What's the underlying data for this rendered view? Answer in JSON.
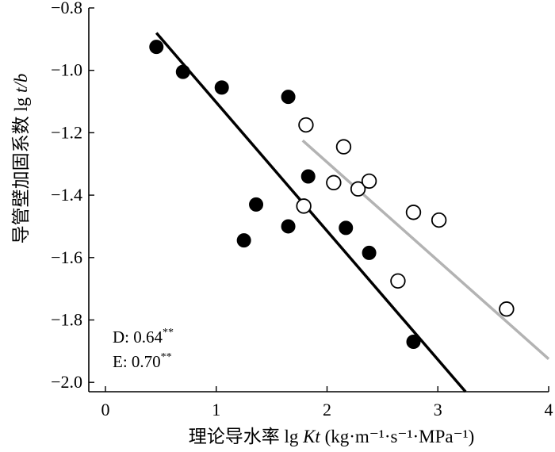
{
  "chart_data": {
    "type": "scatter",
    "xlabel_parts": {
      "prefix": "理论导水率 lg ",
      "var": "Kt",
      "unit": " (kg·m⁻¹·s⁻¹·MPa⁻¹)"
    },
    "ylabel_parts": {
      "prefix": "导管壁加固系数 lg ",
      "var": "t/b"
    },
    "xlim": [
      -0.15,
      4.0
    ],
    "ylim": [
      -2.03,
      -0.8
    ],
    "xticks": [
      0,
      1,
      2,
      3,
      4
    ],
    "yticks": [
      -0.8,
      -1.0,
      -1.2,
      -1.4,
      -1.6,
      -1.8,
      -2.0
    ],
    "xtick_labels": [
      "0",
      "1",
      "2",
      "3",
      "4"
    ],
    "ytick_labels": [
      "−0.8",
      "−1.0",
      "−1.2",
      "−1.4",
      "−1.6",
      "−1.8",
      "−2.0"
    ],
    "grid": false,
    "series": [
      {
        "name": "D",
        "marker": "filled-circle",
        "color": "#000000",
        "points": [
          [
            0.46,
            -0.925
          ],
          [
            0.7,
            -1.005
          ],
          [
            1.05,
            -1.055
          ],
          [
            1.65,
            -1.085
          ],
          [
            1.36,
            -1.43
          ],
          [
            1.83,
            -1.34
          ],
          [
            1.25,
            -1.545
          ],
          [
            1.65,
            -1.5
          ],
          [
            2.17,
            -1.505
          ],
          [
            2.38,
            -1.585
          ],
          [
            2.78,
            -1.87
          ]
        ],
        "fit": {
          "x": [
            0.46,
            3.25
          ],
          "y": [
            -0.88,
            -2.03
          ],
          "color": "#000000"
        }
      },
      {
        "name": "E",
        "marker": "open-circle",
        "color": "#000000",
        "points": [
          [
            1.81,
            -1.175
          ],
          [
            2.15,
            -1.245
          ],
          [
            2.06,
            -1.36
          ],
          [
            2.28,
            -1.38
          ],
          [
            2.38,
            -1.355
          ],
          [
            1.79,
            -1.435
          ],
          [
            2.78,
            -1.455
          ],
          [
            3.01,
            -1.48
          ],
          [
            2.64,
            -1.675
          ],
          [
            3.62,
            -1.765
          ]
        ],
        "fit": {
          "x": [
            1.78,
            4.0
          ],
          "y": [
            -1.225,
            -1.925
          ],
          "color": "#b3b3b3"
        }
      }
    ],
    "annotations": [
      {
        "label": "D: 0.64",
        "sup": "**"
      },
      {
        "label": "E: 0.70",
        "sup": "**"
      }
    ]
  }
}
